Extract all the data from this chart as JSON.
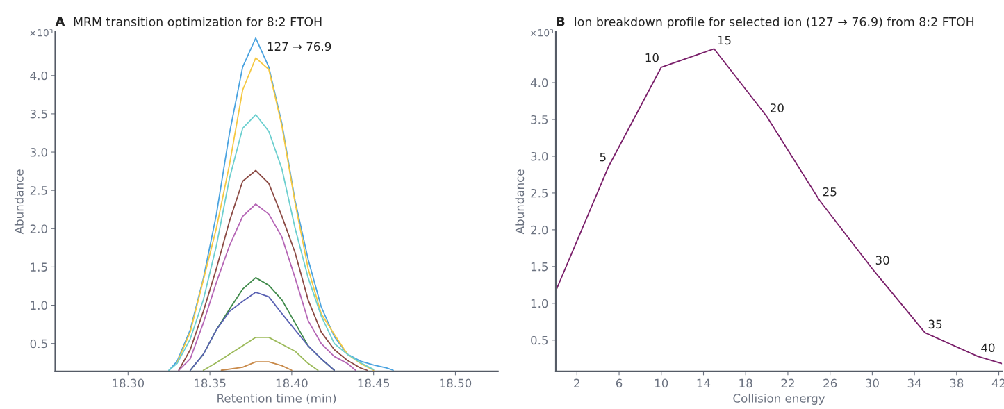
{
  "chart_data": [
    {
      "type": "line",
      "title": "MRM transition optimization for 8:2 FTOH",
      "xlabel": "Retention time (min)",
      "ylabel": "Abundance",
      "annotations": [
        "A",
        "×10³",
        {
          "text": "127 → 76.9",
          "x": 18.38,
          "y": 4.49
        }
      ],
      "xlim": [
        18.2555,
        18.526
      ],
      "xticks": [
        {
          "value": 18.3,
          "label": "18.30"
        },
        {
          "value": 18.35,
          "label": "18.35"
        },
        {
          "value": 18.4,
          "label": "18.40"
        },
        {
          "value": 18.45,
          "label": "18.45"
        },
        {
          "value": 18.5,
          "label": "18.50"
        }
      ],
      "ylim": [
        0.136,
        4.57
      ],
      "yticks": [
        0.5,
        {
          "value": 1,
          "label": "1.0"
        },
        1.5,
        {
          "value": 2,
          "label": "2.0"
        },
        2.5,
        {
          "value": 3,
          "label": "3.0"
        },
        3.5,
        {
          "value": 4,
          "label": "4.0"
        }
      ],
      "grid": false,
      "marker": "none",
      "line_style": "solid",
      "series": [
        {
          "color": "#4aa3e0",
          "x": [
            18.325,
            18.33,
            18.338,
            18.346,
            18.354,
            18.362,
            18.37,
            18.378,
            18.386,
            18.394,
            18.402,
            18.41,
            18.418,
            18.426,
            18.434,
            18.442,
            18.45,
            18.458,
            18.462
          ],
          "values": [
            0.15,
            0.27,
            0.68,
            1.35,
            2.19,
            3.25,
            4.11,
            4.49,
            4.11,
            3.37,
            2.37,
            1.6,
            0.98,
            0.59,
            0.36,
            0.27,
            0.22,
            0.18,
            0.15
          ]
        },
        {
          "color": "#f5c842",
          "x": [
            18.33,
            18.338,
            18.346,
            18.354,
            18.362,
            18.37,
            18.378,
            18.386,
            18.394,
            18.402,
            18.41,
            18.418,
            18.426,
            18.434,
            18.442,
            18.45
          ],
          "values": [
            0.25,
            0.65,
            1.33,
            2.01,
            2.84,
            3.81,
            4.23,
            4.08,
            3.34,
            2.34,
            1.48,
            0.89,
            0.62,
            0.36,
            0.24,
            0.15
          ]
        },
        {
          "color": "#6ccfcf",
          "x": [
            18.325,
            18.33,
            18.338,
            18.346,
            18.354,
            18.362,
            18.37,
            18.378,
            18.386,
            18.394,
            18.402,
            18.41,
            18.418,
            18.426,
            18.434,
            18.442,
            18.45
          ],
          "values": [
            0.15,
            0.24,
            0.56,
            1.07,
            1.78,
            2.66,
            3.31,
            3.49,
            3.27,
            2.78,
            2.01,
            1.36,
            0.86,
            0.5,
            0.36,
            0.25,
            0.16
          ]
        },
        {
          "color": "#8b4a44",
          "x": [
            18.331,
            18.338,
            18.346,
            18.354,
            18.362,
            18.37,
            18.378,
            18.386,
            18.394,
            18.402,
            18.41,
            18.418,
            18.426,
            18.434,
            18.442,
            18.446
          ],
          "values": [
            0.15,
            0.42,
            0.92,
            1.48,
            2.1,
            2.62,
            2.76,
            2.59,
            2.16,
            1.69,
            1.07,
            0.65,
            0.42,
            0.28,
            0.18,
            0.15
          ]
        },
        {
          "color": "#b565b5",
          "x": [
            18.331,
            18.338,
            18.346,
            18.354,
            18.362,
            18.37,
            18.378,
            18.386,
            18.394,
            18.402,
            18.41,
            18.418,
            18.426,
            18.434,
            18.439
          ],
          "values": [
            0.15,
            0.3,
            0.77,
            1.3,
            1.78,
            2.16,
            2.32,
            2.19,
            1.89,
            1.36,
            0.8,
            0.5,
            0.33,
            0.24,
            0.15
          ]
        },
        {
          "color": "#3f8a4a",
          "x": [
            18.338,
            18.346,
            18.354,
            18.362,
            18.37,
            18.378,
            18.386,
            18.394,
            18.402,
            18.41,
            18.418,
            18.426
          ],
          "values": [
            0.15,
            0.36,
            0.68,
            0.95,
            1.21,
            1.36,
            1.26,
            1.07,
            0.77,
            0.47,
            0.3,
            0.15
          ]
        },
        {
          "color": "#5a62b3",
          "x": [
            18.338,
            18.346,
            18.354,
            18.362,
            18.37,
            18.378,
            18.386,
            18.394,
            18.402,
            18.41,
            18.418,
            18.426
          ],
          "values": [
            0.15,
            0.36,
            0.68,
            0.92,
            1.05,
            1.17,
            1.11,
            0.89,
            0.68,
            0.47,
            0.3,
            0.15
          ]
        },
        {
          "color": "#9cba5a",
          "x": [
            18.346,
            18.354,
            18.362,
            18.37,
            18.378,
            18.386,
            18.394,
            18.402,
            18.41,
            18.416
          ],
          "values": [
            0.15,
            0.25,
            0.36,
            0.47,
            0.58,
            0.58,
            0.49,
            0.4,
            0.24,
            0.15
          ]
        },
        {
          "color": "#c98a4a",
          "x": [
            18.357,
            18.37,
            18.378,
            18.386,
            18.394,
            18.4
          ],
          "values": [
            0.15,
            0.19,
            0.26,
            0.26,
            0.21,
            0.15
          ]
        }
      ]
    },
    {
      "type": "line",
      "title": "Ion breakdown profile for selected ion (127 → 76.9) from 8:2 FTOH",
      "xlabel": "Collision energy",
      "ylabel": "Abundance",
      "annotations": [
        "B",
        "×10³",
        {
          "text": "5",
          "x": 5,
          "y": 2.86
        },
        {
          "text": "10",
          "x": 10,
          "y": 4.21
        },
        {
          "text": "15",
          "x": 15,
          "y": 4.46
        },
        {
          "text": "20",
          "x": 20,
          "y": 3.54
        },
        {
          "text": "25",
          "x": 25,
          "y": 2.4
        },
        {
          "text": "30",
          "x": 30,
          "y": 1.47
        },
        {
          "text": "35",
          "x": 35,
          "y": 0.6
        },
        {
          "text": "40",
          "x": 40,
          "y": 0.28
        }
      ],
      "xlim": [
        0,
        42.3
      ],
      "xticks": [
        2,
        6,
        10,
        14,
        18,
        22,
        26,
        30,
        34,
        38,
        42
      ],
      "ylim": [
        0.075,
        4.69
      ],
      "yticks": [
        0.5,
        {
          "value": 1,
          "label": "1.0"
        },
        1.5,
        {
          "value": 2,
          "label": "2.0"
        },
        2.5,
        {
          "value": 3,
          "label": "3.0"
        },
        3.5,
        {
          "value": 4,
          "label": "4.0"
        }
      ],
      "grid": false,
      "marker": "none",
      "line_style": "solid",
      "series": [
        {
          "color": "#7a1f6a",
          "x": [
            0,
            5,
            10,
            15,
            20,
            25,
            30,
            35,
            40,
            42.3
          ],
          "values": [
            1.17,
            2.86,
            4.21,
            4.46,
            3.54,
            2.4,
            1.47,
            0.6,
            0.28,
            0.18
          ]
        }
      ]
    }
  ]
}
